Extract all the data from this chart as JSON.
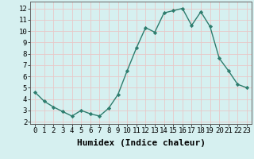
{
  "x": [
    0,
    1,
    2,
    3,
    4,
    5,
    6,
    7,
    8,
    9,
    10,
    11,
    12,
    13,
    14,
    15,
    16,
    17,
    18,
    19,
    20,
    21,
    22,
    23
  ],
  "y": [
    4.6,
    3.8,
    3.3,
    2.9,
    2.5,
    3.0,
    2.7,
    2.5,
    3.2,
    4.4,
    6.5,
    8.5,
    10.3,
    9.9,
    11.6,
    11.8,
    12.0,
    10.5,
    11.7,
    10.4,
    7.6,
    6.5,
    5.3,
    5.0
  ],
  "line_color": "#2e7d6e",
  "marker": "D",
  "marker_size": 2.2,
  "linewidth": 1.0,
  "xlabel": "Humidex (Indice chaleur)",
  "xlim": [
    -0.5,
    23.5
  ],
  "ylim": [
    1.8,
    12.6
  ],
  "yticks": [
    2,
    3,
    4,
    5,
    6,
    7,
    8,
    9,
    10,
    11,
    12
  ],
  "xticks": [
    0,
    1,
    2,
    3,
    4,
    5,
    6,
    7,
    8,
    9,
    10,
    11,
    12,
    13,
    14,
    15,
    16,
    17,
    18,
    19,
    20,
    21,
    22,
    23
  ],
  "bg_color": "#d6f0f0",
  "grid_color": "#e8c8c8",
  "tick_label_fontsize": 6.5,
  "xlabel_fontsize": 8
}
